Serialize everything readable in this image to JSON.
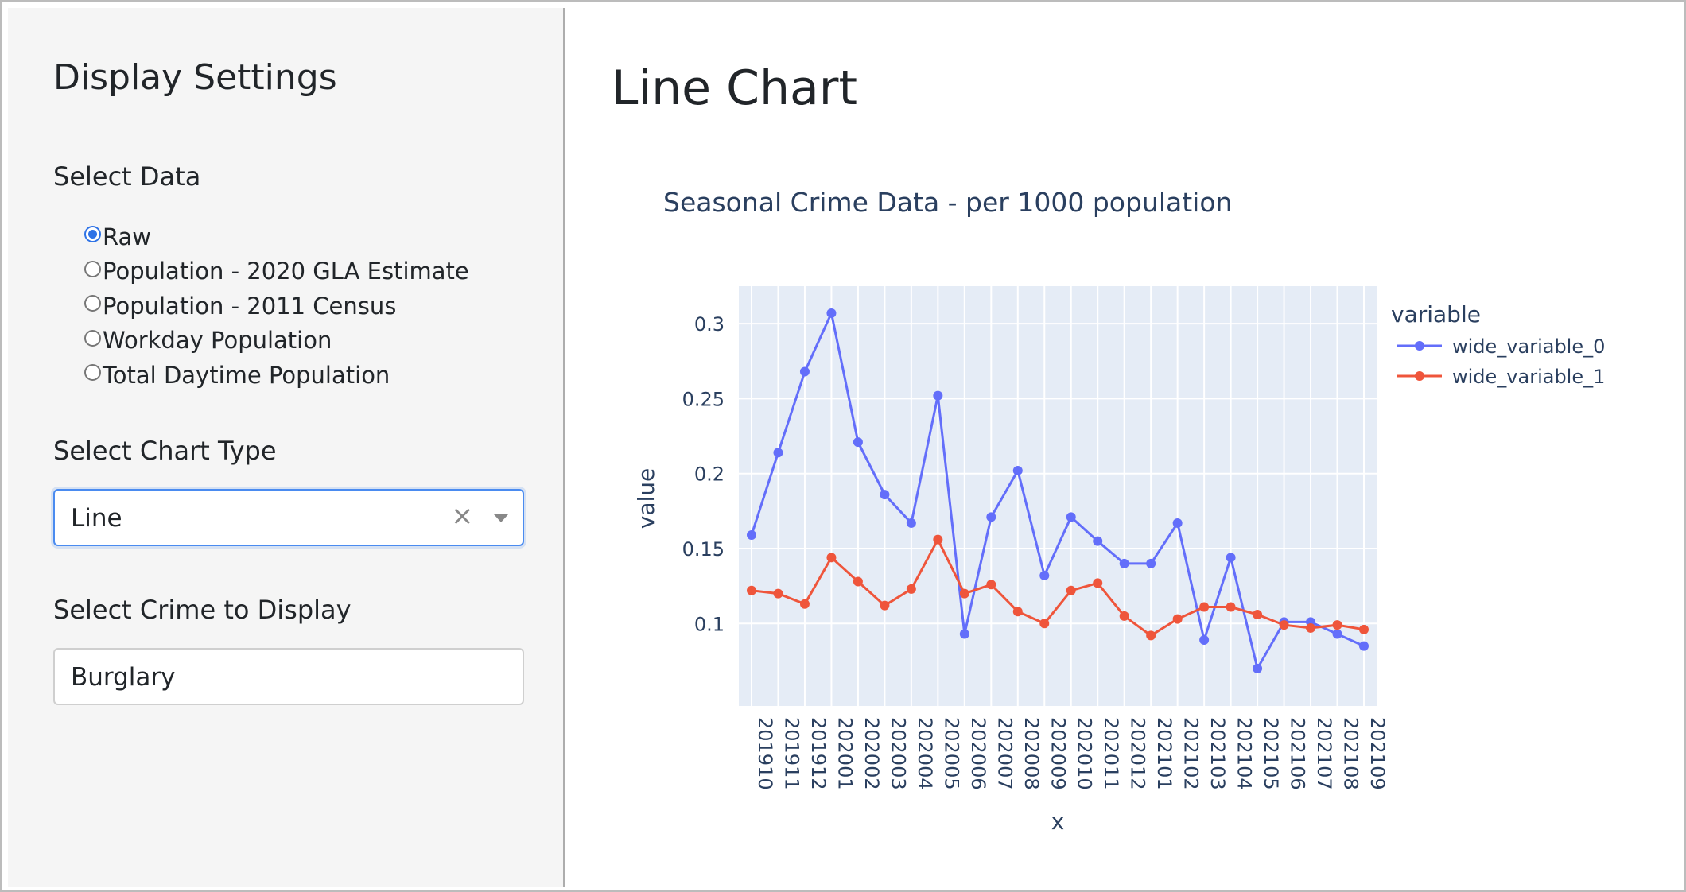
{
  "sidebar": {
    "title": "Display Settings",
    "select_data": {
      "label": "Select Data",
      "options": [
        {
          "label": "Raw",
          "checked": true
        },
        {
          "label": "Population - 2020 GLA Estimate",
          "checked": false
        },
        {
          "label": "Population - 2011 Census",
          "checked": false
        },
        {
          "label": "Workday Population",
          "checked": false
        },
        {
          "label": "Total Daytime Population",
          "checked": false
        }
      ]
    },
    "chart_type": {
      "label": "Select Chart Type",
      "value": "Line",
      "clear_icon": "×"
    },
    "crime": {
      "label": "Select Crime to Display",
      "value": "Burglary"
    }
  },
  "main": {
    "title": "Line Chart"
  },
  "colors": {
    "accent": "#2f73e6",
    "series0": "#636efa",
    "series1": "#ef553b",
    "plot_bg": "#e5ecf6"
  },
  "chart_data": {
    "type": "line",
    "title": "Seasonal Crime Data - per 1000 population",
    "xlabel": "x",
    "ylabel": "value",
    "legend_title": "variable",
    "legend_position": "right",
    "ylim": [
      0.045,
      0.325
    ],
    "yticks": [
      0.1,
      0.15,
      0.2,
      0.25,
      0.3
    ],
    "ytick_labels": [
      "0.1",
      "0.15",
      "0.2",
      "0.25",
      "0.3"
    ],
    "categories": [
      "201910",
      "201911",
      "201912",
      "202001",
      "202002",
      "202003",
      "202004",
      "202005",
      "202006",
      "202007",
      "202008",
      "202009",
      "202010",
      "202011",
      "202012",
      "202101",
      "202102",
      "202103",
      "202104",
      "202105",
      "202106",
      "202107",
      "202108",
      "202109"
    ],
    "series": [
      {
        "name": "wide_variable_0",
        "color": "#636efa",
        "values": [
          0.159,
          0.214,
          0.268,
          0.307,
          0.221,
          0.186,
          0.167,
          0.252,
          0.093,
          0.171,
          0.202,
          0.132,
          0.171,
          0.155,
          0.14,
          0.14,
          0.167,
          0.089,
          0.144,
          0.07,
          0.101,
          0.101,
          0.093,
          0.085
        ]
      },
      {
        "name": "wide_variable_1",
        "color": "#ef553b",
        "values": [
          0.122,
          0.12,
          0.113,
          0.144,
          0.128,
          0.112,
          0.123,
          0.156,
          0.12,
          0.126,
          0.108,
          0.1,
          0.122,
          0.127,
          0.105,
          0.092,
          0.103,
          0.111,
          0.111,
          0.106,
          0.099,
          0.097,
          0.099,
          0.096
        ]
      }
    ]
  }
}
